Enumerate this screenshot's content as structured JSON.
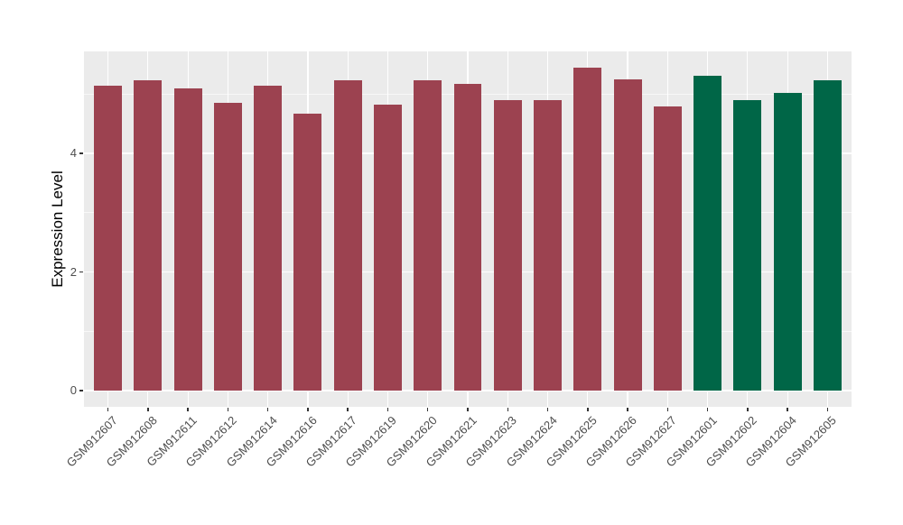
{
  "figure": {
    "background": "#FFFFFF"
  },
  "chart_data": {
    "type": "bar",
    "title": "",
    "xlabel": "",
    "ylabel": "Expression Level",
    "categories": [
      "GSM912607",
      "GSM912608",
      "GSM912611",
      "GSM912612",
      "GSM912614",
      "GSM912616",
      "GSM912617",
      "GSM912619",
      "GSM912620",
      "GSM912621",
      "GSM912623",
      "GSM912624",
      "GSM912625",
      "GSM912626",
      "GSM912627",
      "GSM912601",
      "GSM912602",
      "GSM912604",
      "GSM912605"
    ],
    "values": [
      5.14,
      5.23,
      5.1,
      4.86,
      5.14,
      4.67,
      5.23,
      4.82,
      5.23,
      5.17,
      4.9,
      4.9,
      5.45,
      5.25,
      4.79,
      5.31,
      4.9,
      5.02,
      5.23
    ],
    "bar_groups": [
      "group1",
      "group1",
      "group1",
      "group1",
      "group1",
      "group1",
      "group1",
      "group1",
      "group1",
      "group1",
      "group1",
      "group1",
      "group1",
      "group1",
      "group1",
      "group2",
      "group2",
      "group2",
      "group2"
    ],
    "group_colors": {
      "group1": "#9C4250",
      "group2": "#006647"
    },
    "yticks": [
      0,
      2,
      4
    ],
    "yticks_minor": [
      1,
      3,
      5
    ],
    "ylim": [
      -0.27,
      5.72
    ],
    "x_tick_rotation_deg": 45,
    "legend": "none",
    "grid": true,
    "panel_background": "#EBEBEB",
    "grid_color": "#FFFFFF",
    "tick_label_color": "#4D4D4D",
    "axis_title_color": "#000000"
  }
}
